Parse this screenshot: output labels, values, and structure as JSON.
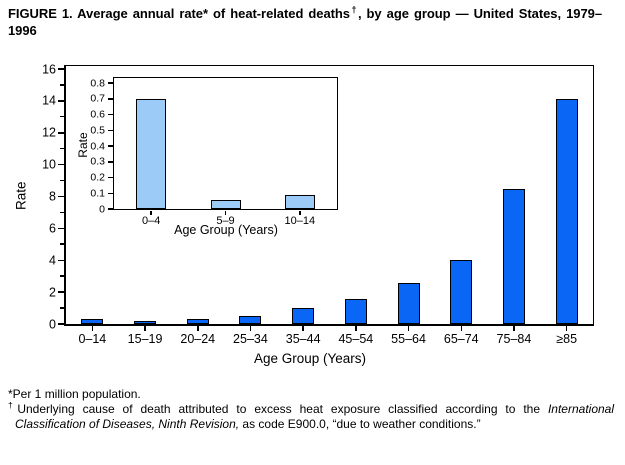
{
  "title": {
    "part1": "FIGURE 1. Average annual rate* of heat-related deaths",
    "dagger": "†",
    "part2": ", by age group — United States, 1979–1996"
  },
  "chart_data": [
    {
      "id": "main",
      "type": "bar",
      "categories": [
        "0–14",
        "15–19",
        "20–24",
        "25–34",
        "35–44",
        "45–54",
        "55–64",
        "65–74",
        "75–84",
        "≥85"
      ],
      "values": [
        0.3,
        0.2,
        0.3,
        0.5,
        1.0,
        1.6,
        2.6,
        4.0,
        8.5,
        14.1
      ],
      "xlabel": "Age Group (Years)",
      "ylabel": "Rate",
      "ylim": [
        0,
        16
      ],
      "yticks": [
        0,
        2,
        4,
        6,
        8,
        10,
        12,
        14,
        16
      ],
      "ytick_labels": [
        "0",
        "2",
        "4",
        "6",
        "8",
        "10",
        "12",
        "14",
        "16"
      ],
      "minor_yticks": [
        1,
        3,
        5,
        7,
        9,
        11,
        13,
        15
      ],
      "bar_color": "#0A66F5",
      "bar_border": "#000000",
      "grid": "off",
      "legend": "none"
    },
    {
      "id": "inset",
      "type": "bar",
      "categories": [
        "0–4",
        "5–9",
        "10–14"
      ],
      "values": [
        0.7,
        0.06,
        0.09
      ],
      "xlabel": "Age Group (Years)",
      "ylabel": "Rate",
      "ylim": [
        0,
        0.8
      ],
      "yticks": [
        0,
        0.1,
        0.2,
        0.3,
        0.4,
        0.5,
        0.6,
        0.7,
        0.8
      ],
      "ytick_labels": [
        "0",
        "0.1",
        "0.2",
        "0.3",
        "0.4",
        "0.5",
        "0.6",
        "0.7",
        "0.8"
      ],
      "minor_yticks": [],
      "bar_color": "#9CCBF7",
      "bar_border": "#000000",
      "grid": "off",
      "legend": "none"
    }
  ],
  "footnotes": [
    {
      "marker": "*",
      "text": "Per 1 million population."
    },
    {
      "marker": "†",
      "text_before_italic": "Underlying cause of death attributed to excess heat exposure classified according to the ",
      "italic": "International Classification of Diseases, Ninth Revision,",
      "text_after_italic": " as code E900.0, “due to weather conditions.”"
    }
  ]
}
